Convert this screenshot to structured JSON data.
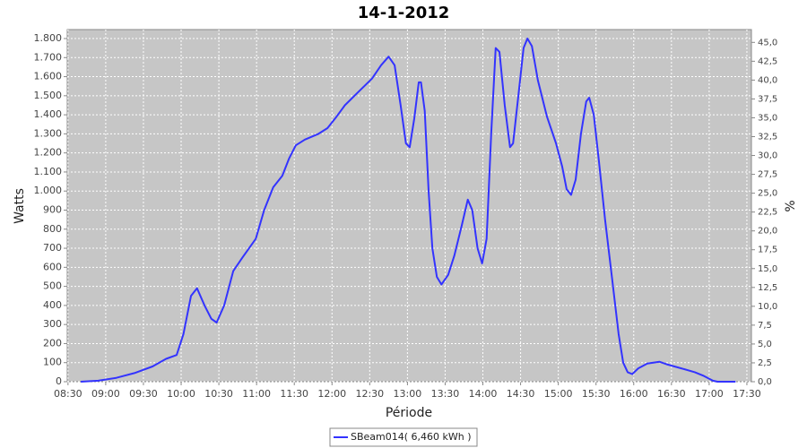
{
  "chart_data": {
    "type": "line",
    "title": "14-1-2012",
    "x_label": "Période",
    "y_label": "Watts",
    "y2_label": "%",
    "xlim": [
      8.49,
      17.56
    ],
    "xticks": [
      {
        "value": 8.5,
        "label": "08:30"
      },
      {
        "value": 9,
        "label": "09:00"
      },
      {
        "value": 9.5,
        "label": "09:30"
      },
      {
        "value": 10,
        "label": "10:00"
      },
      {
        "value": 10.5,
        "label": "10:30"
      },
      {
        "value": 11,
        "label": "11:00"
      },
      {
        "value": 11.5,
        "label": "11:30"
      },
      {
        "value": 12,
        "label": "12:00"
      },
      {
        "value": 12.5,
        "label": "12:30"
      },
      {
        "value": 13,
        "label": "13:00"
      },
      {
        "value": 13.5,
        "label": "13:30"
      },
      {
        "value": 14,
        "label": "14:00"
      },
      {
        "value": 14.5,
        "label": "14:30"
      },
      {
        "value": 15,
        "label": "15:00"
      },
      {
        "value": 15.5,
        "label": "15:30"
      },
      {
        "value": 16,
        "label": "16:00"
      },
      {
        "value": 16.5,
        "label": "16:30"
      },
      {
        "value": 17,
        "label": "17:00"
      },
      {
        "value": 17.5,
        "label": "17:30"
      }
    ],
    "ylim": [
      0,
      1847
    ],
    "yticks": [
      0,
      100,
      200,
      300,
      400,
      500,
      600,
      700,
      800,
      900,
      {
        "value": 1000,
        "label": "1.000"
      },
      {
        "value": 1100,
        "label": "1.100"
      },
      {
        "value": 1200,
        "label": "1.200"
      },
      {
        "value": 1300,
        "label": "1.300"
      },
      {
        "value": 1400,
        "label": "1.400"
      },
      {
        "value": 1500,
        "label": "1.500"
      },
      {
        "value": 1600,
        "label": "1.600"
      },
      {
        "value": 1700,
        "label": "1.700"
      },
      {
        "value": 1800,
        "label": "1.800"
      }
    ],
    "y2lim": [
      0,
      46.7
    ],
    "y2ticks": [
      {
        "value": 0,
        "label": "0,0"
      },
      {
        "value": 2.5,
        "label": "2,5"
      },
      {
        "value": 5,
        "label": "5,0"
      },
      {
        "value": 7.5,
        "label": "7,5"
      },
      {
        "value": 10,
        "label": "10,0"
      },
      {
        "value": 12.5,
        "label": "12,5"
      },
      {
        "value": 15,
        "label": "15,0"
      },
      {
        "value": 17.5,
        "label": "17,5"
      },
      {
        "value": 20,
        "label": "20,0"
      },
      {
        "value": 22.5,
        "label": "22,5"
      },
      {
        "value": 25,
        "label": "25,0"
      },
      {
        "value": 27.5,
        "label": "27,5"
      },
      {
        "value": 30,
        "label": "30,0"
      },
      {
        "value": 32.5,
        "label": "32,5"
      },
      {
        "value": 35,
        "label": "35,0"
      },
      {
        "value": 37.5,
        "label": "37,5"
      },
      {
        "value": 40,
        "label": "40,0"
      },
      {
        "value": 42.5,
        "label": "42,5"
      },
      {
        "value": 45,
        "label": "45,0"
      }
    ],
    "grid": true,
    "legend": "bottom",
    "x": [
      8.67,
      8.9,
      9.14,
      9.38,
      9.62,
      9.8,
      9.94,
      10.03,
      10.13,
      10.21,
      10.31,
      10.4,
      10.47,
      10.57,
      10.69,
      10.81,
      10.99,
      11.1,
      11.22,
      11.34,
      11.43,
      11.52,
      11.64,
      11.82,
      11.94,
      12.06,
      12.17,
      12.35,
      12.53,
      12.65,
      12.75,
      12.83,
      12.91,
      12.98,
      13.03,
      13.09,
      13.15,
      13.18,
      13.23,
      13.28,
      13.33,
      13.39,
      13.45,
      13.54,
      13.62,
      13.72,
      13.8,
      13.86,
      13.93,
      13.99,
      14.05,
      14.11,
      14.17,
      14.22,
      14.29,
      14.36,
      14.4,
      14.47,
      14.54,
      14.59,
      14.65,
      14.73,
      14.85,
      14.97,
      15.05,
      15.11,
      15.17,
      15.23,
      15.3,
      15.37,
      15.41,
      15.47,
      15.54,
      15.62,
      15.71,
      15.8,
      15.86,
      15.92,
      15.98,
      16.06,
      16.18,
      16.34,
      16.45,
      16.63,
      16.81,
      16.93,
      17.05,
      17.11,
      17.35
    ],
    "series": [
      {
        "name": "SBeam014( 6,460 kWh )",
        "color": "#3333ff",
        "values": [
          0,
          5,
          20,
          45,
          80,
          120,
          140,
          250,
          450,
          490,
          400,
          330,
          310,
          400,
          580,
          650,
          750,
          900,
          1020,
          1080,
          1170,
          1240,
          1270,
          1300,
          1330,
          1390,
          1450,
          1520,
          1590,
          1660,
          1705,
          1660,
          1450,
          1250,
          1230,
          1380,
          1570,
          1570,
          1420,
          1000,
          700,
          550,
          510,
          560,
          660,
          820,
          955,
          900,
          700,
          620,
          750,
          1300,
          1750,
          1730,
          1450,
          1230,
          1250,
          1500,
          1750,
          1800,
          1760,
          1580,
          1390,
          1250,
          1130,
          1010,
          980,
          1060,
          1300,
          1470,
          1490,
          1400,
          1150,
          850,
          550,
          250,
          100,
          50,
          40,
          70,
          95,
          105,
          90,
          70,
          50,
          30,
          5,
          0,
          0
        ]
      }
    ]
  }
}
